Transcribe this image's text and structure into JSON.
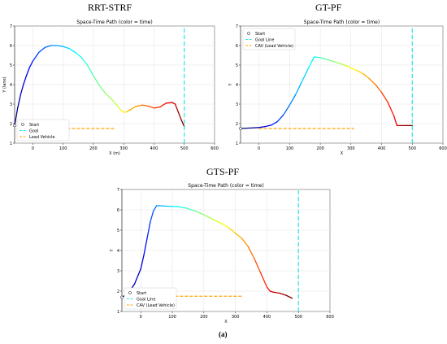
{
  "figure": {
    "panel_titles": [
      "RRT-STRF",
      "GT-PF",
      "GTS-PF"
    ],
    "caption": "(a)"
  },
  "colors": {
    "goal": "#22e6e6",
    "lead": "#ffa500",
    "path_start": "#00008b",
    "path_end": "#dd0000"
  },
  "chart_data": [
    {
      "type": "line",
      "title": "Space-Time Path (color = time)",
      "xlabel": "X (m)",
      "ylabel": "Y (lane)",
      "xlim": [
        -60,
        600
      ],
      "ylim": [
        1,
        7
      ],
      "xticks": [
        0,
        100,
        200,
        300,
        400,
        500,
        600
      ],
      "yticks": [
        1,
        2,
        3,
        4,
        5,
        6,
        7
      ],
      "grid": true,
      "legend_position": "bottom-left",
      "legend": [
        "Start",
        "Goal",
        "Lead Vehicle"
      ],
      "series": [
        {
          "name": "",
          "role": "path",
          "x": [
            -60,
            -50,
            -40,
            -30,
            -20,
            -10,
            0,
            20,
            40,
            60,
            80,
            100,
            120,
            140,
            160,
            180,
            200,
            220,
            240,
            260,
            280,
            290,
            300,
            310,
            320,
            340,
            360,
            380,
            400,
            420,
            440,
            460,
            470,
            480,
            490,
            500
          ],
          "y": [
            1.9,
            2.8,
            3.5,
            4.05,
            4.5,
            4.9,
            5.2,
            5.65,
            5.9,
            6.0,
            6.0,
            5.95,
            5.85,
            5.65,
            5.4,
            5.0,
            4.45,
            3.95,
            3.55,
            3.25,
            2.9,
            2.7,
            2.58,
            2.6,
            2.7,
            2.88,
            2.95,
            2.9,
            2.8,
            2.85,
            3.05,
            3.08,
            3.0,
            2.6,
            2.2,
            1.85
          ]
        },
        {
          "name": "Goal",
          "role": "goal",
          "x": [
            500,
            500
          ],
          "y": [
            1,
            7
          ]
        },
        {
          "name": "Lead Vehicle",
          "role": "lead",
          "x": [
            0,
            270
          ],
          "y": [
            1.75,
            1.75
          ]
        }
      ]
    },
    {
      "type": "line",
      "title": "Space-Time Path (color = time)",
      "xlabel": "X",
      "ylabel": "Y",
      "xlim": [
        -60,
        600
      ],
      "ylim": [
        1,
        7
      ],
      "xticks": [
        0,
        100,
        200,
        300,
        400,
        500,
        600
      ],
      "yticks": [
        1,
        2,
        3,
        4,
        5,
        6,
        7
      ],
      "grid": true,
      "legend_position": "top-left",
      "legend": [
        "Start",
        "Goal Line",
        "CAV (Lead Vehicle)"
      ],
      "series": [
        {
          "name": "",
          "role": "path",
          "x": [
            -60,
            -20,
            0,
            20,
            40,
            60,
            80,
            100,
            120,
            140,
            160,
            180,
            200,
            220,
            240,
            260,
            280,
            300,
            320,
            340,
            360,
            380,
            400,
            420,
            440,
            450,
            460,
            480,
            500
          ],
          "y": [
            1.75,
            1.78,
            1.8,
            1.85,
            1.92,
            2.1,
            2.45,
            2.95,
            3.5,
            4.15,
            4.8,
            5.42,
            5.38,
            5.3,
            5.2,
            5.1,
            5.0,
            4.85,
            4.72,
            4.55,
            4.3,
            4.0,
            3.6,
            3.1,
            2.4,
            1.9,
            1.9,
            1.9,
            1.9
          ]
        },
        {
          "name": "Goal Line",
          "role": "goal",
          "x": [
            500,
            500
          ],
          "y": [
            1,
            7
          ]
        },
        {
          "name": "CAV (Lead Vehicle)",
          "role": "lead",
          "x": [
            0,
            310
          ],
          "y": [
            1.75,
            1.75
          ]
        }
      ]
    },
    {
      "type": "line",
      "title": "Space-Time Path (color = time)",
      "xlabel": "X",
      "ylabel": "Y",
      "xlim": [
        -60,
        600
      ],
      "ylim": [
        1,
        7
      ],
      "xticks": [
        0,
        100,
        200,
        300,
        400,
        500,
        600
      ],
      "yticks": [
        1,
        2,
        3,
        4,
        5,
        6,
        7
      ],
      "grid": true,
      "legend_position": "bottom-left",
      "legend": [
        "Start",
        "Goal Line",
        "CAV (Lead Vehicle)"
      ],
      "series": [
        {
          "name": "",
          "role": "path",
          "x": [
            -60,
            -40,
            -20,
            0,
            10,
            20,
            30,
            40,
            50,
            60,
            80,
            100,
            120,
            140,
            160,
            180,
            200,
            220,
            240,
            260,
            280,
            300,
            320,
            340,
            360,
            380,
            400,
            410,
            420,
            440,
            460,
            480
          ],
          "y": [
            1.7,
            1.9,
            2.35,
            3.1,
            3.8,
            4.6,
            5.4,
            5.95,
            6.2,
            6.2,
            6.18,
            6.17,
            6.15,
            6.1,
            6.0,
            5.9,
            5.75,
            5.6,
            5.45,
            5.3,
            5.1,
            4.85,
            4.6,
            4.2,
            3.6,
            2.9,
            2.2,
            2.0,
            1.95,
            1.9,
            1.8,
            1.65
          ]
        },
        {
          "name": "Goal Line",
          "role": "goal",
          "x": [
            500,
            500
          ],
          "y": [
            1,
            7
          ]
        },
        {
          "name": "CAV (Lead Vehicle)",
          "role": "lead",
          "x": [
            0,
            320
          ],
          "y": [
            1.75,
            1.75
          ]
        }
      ]
    }
  ]
}
